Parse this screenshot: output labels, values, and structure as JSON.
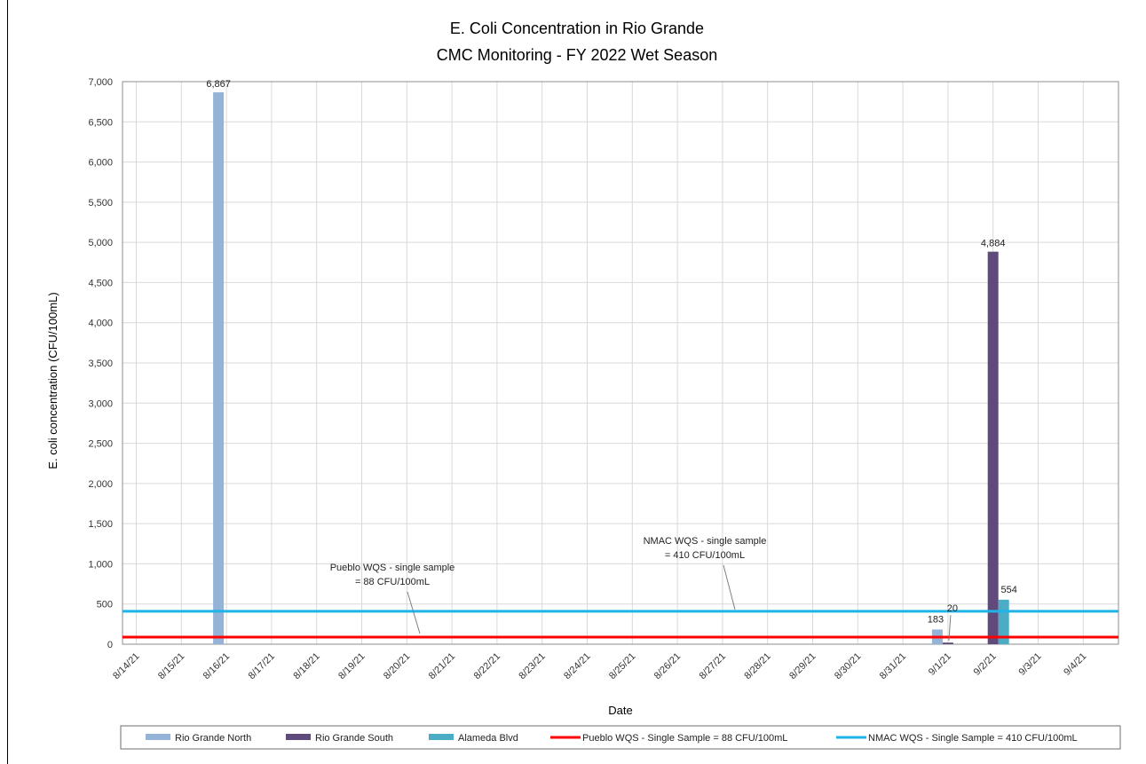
{
  "chart_data": {
    "type": "bar",
    "title": "E. Coli Concentration in Rio Grande",
    "subtitle": "CMC Monitoring - FY 2022 Wet Season",
    "xlabel": "Date",
    "ylabel": "E. coli concentration (CFU/100mL)",
    "ylim": [
      0,
      7000
    ],
    "ytick_step": 500,
    "grid": true,
    "legend_position": "bottom",
    "categories": [
      "8/14/21",
      "8/15/21",
      "8/16/21",
      "8/17/21",
      "8/18/21",
      "8/19/21",
      "8/20/21",
      "8/21/21",
      "8/22/21",
      "8/23/21",
      "8/24/21",
      "8/25/21",
      "8/26/21",
      "8/27/21",
      "8/28/21",
      "8/29/21",
      "8/30/21",
      "8/31/21",
      "9/1/21",
      "9/2/21",
      "9/3/21",
      "9/4/21"
    ],
    "series": [
      {
        "name": "Rio Grande North",
        "color": "#95B3D7",
        "points": [
          {
            "date": "8/16/21",
            "value": 6867,
            "label": "6,867"
          },
          {
            "date": "9/1/21",
            "value": 183,
            "label": "183"
          }
        ]
      },
      {
        "name": "Rio Grande South",
        "color": "#604A7B",
        "points": [
          {
            "date": "9/1/21",
            "value": 20,
            "label": "20"
          },
          {
            "date": "9/2/21",
            "value": 4884,
            "label": "4,884"
          }
        ]
      },
      {
        "name": "Alameda Blvd",
        "color": "#4BACC6",
        "points": [
          {
            "date": "9/2/21",
            "value": 554,
            "label": "554"
          }
        ]
      }
    ],
    "reference_lines": [
      {
        "name": "Pueblo WQS - Single Sample = 88 CFU/100mL",
        "value": 88,
        "color": "#FF0000",
        "annotation": [
          "Pueblo WQS - single sample",
          "= 88 CFU/100mL"
        ]
      },
      {
        "name": "NMAC WQS - Single Sample = 410 CFU/100mL",
        "value": 410,
        "color": "#1FB3E8",
        "annotation": [
          "NMAC WQS - single sample",
          "= 410 CFU/100mL"
        ]
      }
    ]
  }
}
